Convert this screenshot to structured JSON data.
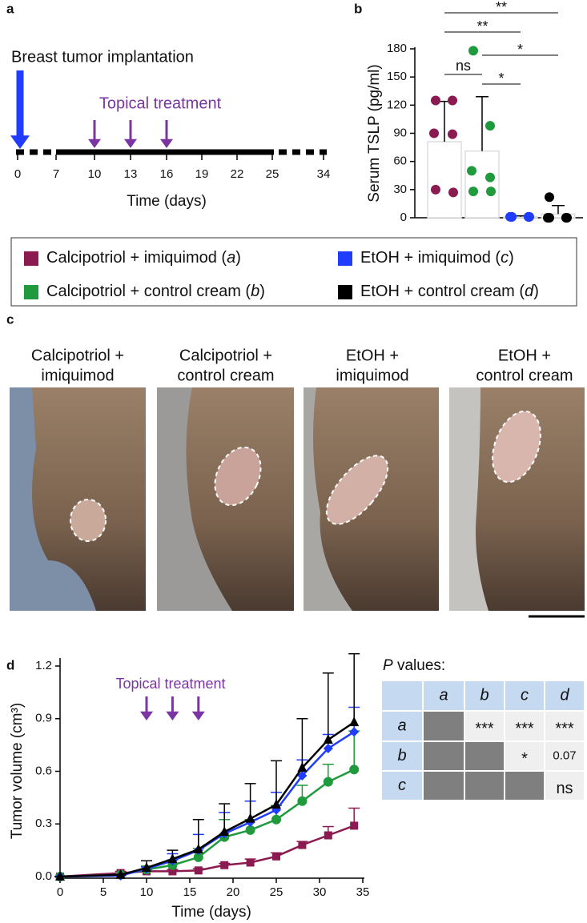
{
  "panel_labels": [
    "a",
    "b",
    "c",
    "d"
  ],
  "timeline": {
    "title": "Breast tumor implantation",
    "treatment_label": "Topical treatment",
    "ticks": [
      0,
      7,
      10,
      13,
      16,
      19,
      22,
      25,
      34
    ],
    "implant_day": 0,
    "treatment_days": [
      10,
      13,
      16
    ],
    "xlabel": "Time (days)"
  },
  "chart_data": [
    {
      "type": "bar",
      "ylabel": "Serum TSLP (pg/ml)",
      "categories": [
        null,
        null,
        null,
        null
      ],
      "values": [
        81,
        71,
        1,
        4
      ],
      "errors": [
        43,
        58,
        1,
        9
      ],
      "colors": [
        "#8b1a50",
        "#1f9a3c",
        "#1f3cff",
        "#000000"
      ],
      "points": [
        [
          125,
          125,
          90,
          89,
          30,
          27
        ],
        [
          178,
          98,
          50,
          43,
          28,
          28
        ],
        [
          1,
          1,
          1,
          1,
          1,
          1
        ],
        [
          22,
          0,
          0,
          0,
          0,
          0
        ]
      ],
      "ylim": [
        0,
        180
      ],
      "yticks": [
        0,
        30,
        60,
        90,
        120,
        150,
        180
      ],
      "significance": [
        {
          "label": "**",
          "groups": [
            0,
            3
          ]
        },
        {
          "label": "**",
          "groups": [
            0,
            2
          ]
        },
        {
          "label": "*",
          "groups": [
            1,
            3
          ]
        },
        {
          "label": "ns",
          "groups": [
            0,
            1
          ]
        },
        {
          "label": "*",
          "groups": [
            1,
            2
          ]
        }
      ]
    },
    {
      "type": "line",
      "xlabel": "Time (days)",
      "ylabel": "Tumor volume (cm³)",
      "annotation": "Topical treatment",
      "treatment_days": [
        10,
        13,
        16
      ],
      "x": [
        0,
        7,
        10,
        13,
        16,
        19,
        22,
        25,
        28,
        31,
        34
      ],
      "series": [
        {
          "color": "#8b1a50",
          "marker": "square",
          "values": [
            0,
            0.02,
            0.03,
            0.03,
            0.035,
            0.065,
            0.08,
            0.115,
            0.18,
            0.235,
            0.29
          ],
          "errors": [
            0,
            0.01,
            0.01,
            0.01,
            0.01,
            0.01,
            0.02,
            0.02,
            0.02,
            0.05,
            0.1
          ]
        },
        {
          "color": "#1f9a3c",
          "marker": "circle",
          "values": [
            0,
            0.01,
            0.04,
            0.065,
            0.11,
            0.225,
            0.265,
            0.325,
            0.43,
            0.54,
            0.61
          ],
          "errors": [
            0,
            0,
            0.02,
            0.03,
            0.05,
            0.1,
            0.06,
            0.08,
            0.09,
            0.1,
            0.22
          ]
        },
        {
          "color": "#1f3cff",
          "marker": "diamond",
          "values": [
            0,
            0.005,
            0.045,
            0.09,
            0.15,
            0.245,
            0.31,
            0.38,
            0.575,
            0.73,
            0.825
          ],
          "errors": [
            0,
            0,
            0.01,
            0.04,
            0.09,
            0.12,
            0.12,
            0.1,
            0.09,
            0.08,
            0.14
          ]
        },
        {
          "color": "#000000",
          "marker": "triangle",
          "values": [
            0,
            0.01,
            0.05,
            0.1,
            0.155,
            0.255,
            0.33,
            0.41,
            0.62,
            0.78,
            0.88
          ],
          "errors": [
            0,
            0,
            0.04,
            0.05,
            0.17,
            0.16,
            0.2,
            0.25,
            0.28,
            0.38,
            0.39
          ]
        }
      ],
      "xlim": [
        0,
        35
      ],
      "xticks": [
        0,
        5,
        10,
        15,
        20,
        25,
        30,
        35
      ],
      "ylim": [
        0,
        1.2
      ],
      "yticks": [
        {
          "value": 0,
          "label": "0.0"
        },
        0.3,
        0.6,
        0.9,
        1.2
      ]
    }
  ],
  "legend": [
    {
      "text": [
        "Calcipotriol + imiquimod (",
        "a",
        ")"
      ],
      "color": "#8b1a50"
    },
    {
      "text": [
        "EtOH + imiquimod (",
        "c",
        ")"
      ],
      "color": "#1f3cff"
    },
    {
      "text": [
        "Calcipotriol + control cream (",
        "b",
        ")"
      ],
      "color": "#1f9a3c"
    },
    {
      "text": [
        "EtOH + control cream (",
        "d",
        ")"
      ],
      "color": "#000000"
    }
  ],
  "photos": {
    "titles": [
      [
        "Calcipotriol +",
        "imiquimod"
      ],
      [
        "Calcipotriol +",
        "control cream"
      ],
      [
        "EtOH +",
        "imiquimod"
      ],
      [
        "EtOH +",
        "control cream"
      ]
    ]
  },
  "pvalues": {
    "title": [
      "P",
      " values:"
    ],
    "columns": [
      "a",
      "b",
      "c",
      "d"
    ],
    "rows": [
      {
        "label": "a",
        "cells": [
          null,
          "***",
          "***",
          "***"
        ]
      },
      {
        "label": "b",
        "cells": [
          null,
          null,
          "*",
          0.07
        ]
      },
      {
        "label": "c",
        "cells": [
          null,
          null,
          null,
          "ns"
        ]
      }
    ]
  }
}
